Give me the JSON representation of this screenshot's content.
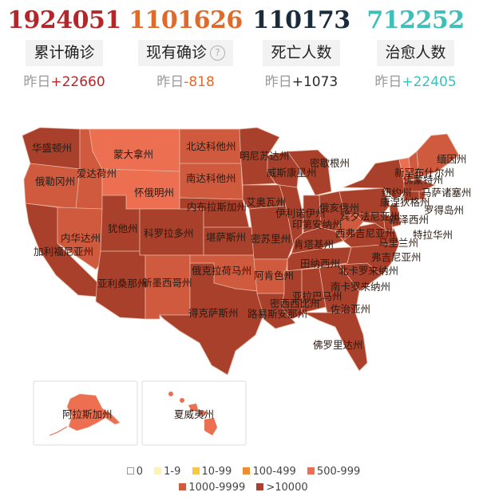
{
  "stats": [
    {
      "value": "1924051",
      "label": "累计确诊",
      "delta_prefix": "昨日",
      "delta": "+22660",
      "color": "#b3262a",
      "delta_color": "#b3262a",
      "help": false
    },
    {
      "value": "1101626",
      "label": "现有确诊",
      "delta_prefix": "昨日",
      "delta": "-818",
      "color": "#e06a2a",
      "delta_color": "#e06a2a",
      "help": true
    },
    {
      "value": "110173",
      "label": "死亡人数",
      "delta_prefix": "昨日",
      "delta": "+1073",
      "color": "#1a2b3c",
      "delta_color": "#2a2a2a",
      "help": false
    },
    {
      "value": "712252",
      "label": "治愈人数",
      "delta_prefix": "昨日",
      "delta": "+22405",
      "color": "#3fbfb9",
      "delta_color": "#3fbfb9",
      "help": false
    }
  ],
  "colors": {
    "c1000_9999": "#cf5a3e",
    "c10000": "#a8402b",
    "c500_999": "#ec6f52",
    "border": "#e8b3a0"
  },
  "states": [
    {
      "name": "华盛顿州",
      "level": ">10000"
    },
    {
      "name": "俄勒冈州",
      "level": "1000-9999"
    },
    {
      "name": "加利福尼亚州",
      "level": ">10000"
    },
    {
      "name": "爱达荷州",
      "level": "1000-9999"
    },
    {
      "name": "内华达州",
      "level": "1000-9999"
    },
    {
      "name": "蒙大拿州",
      "level": "500-999"
    },
    {
      "name": "怀俄明州",
      "level": "500-999"
    },
    {
      "name": "犹他州",
      "level": ">10000"
    },
    {
      "name": "亚利桑那州",
      "level": ">10000"
    },
    {
      "name": "科罗拉多州",
      "level": ">10000"
    },
    {
      "name": "新墨西哥州",
      "level": "1000-9999"
    },
    {
      "name": "北达科他州",
      "level": "1000-9999"
    },
    {
      "name": "南达科他州",
      "level": "1000-9999"
    },
    {
      "name": "内布拉斯加州",
      "level": ">10000"
    },
    {
      "name": "堪萨斯州",
      "level": ">10000"
    },
    {
      "name": "俄克拉荷马州",
      "level": "1000-9999"
    },
    {
      "name": "得克萨斯州",
      "level": ">10000"
    },
    {
      "name": "明尼苏达州",
      "level": ">10000"
    },
    {
      "name": "艾奥瓦州",
      "level": ">10000"
    },
    {
      "name": "密苏里州",
      "level": ">10000"
    },
    {
      "name": "阿肯色州",
      "level": "1000-9999"
    },
    {
      "name": "路易斯安那州",
      "level": ">10000"
    },
    {
      "name": "威斯康星州",
      "level": ">10000"
    },
    {
      "name": "伊利诺伊州",
      "level": ">10000"
    },
    {
      "name": "密歇根州",
      "level": ">10000"
    },
    {
      "name": "印第安纳州",
      "level": ">10000"
    },
    {
      "name": "俄亥俄州",
      "level": ">10000"
    },
    {
      "name": "肯塔基州",
      "level": ">10000"
    },
    {
      "name": "田纳西州",
      "level": ">10000"
    },
    {
      "name": "密西西比州",
      "level": ">10000"
    },
    {
      "name": "亚拉巴马州",
      "level": ">10000"
    },
    {
      "name": "佐治亚州",
      "level": ">10000"
    },
    {
      "name": "佛罗里达州",
      "level": ">10000"
    },
    {
      "name": "南卡罗来纳州",
      "level": ">10000"
    },
    {
      "name": "北卡罗来纳州",
      "level": ">10000"
    },
    {
      "name": "弗吉尼亚州",
      "level": ">10000"
    },
    {
      "name": "西弗吉尼亚州",
      "level": "1000-9999"
    },
    {
      "name": "宾夕法尼亚州",
      "level": ">10000"
    },
    {
      "name": "纽约州",
      "level": ">10000"
    },
    {
      "name": "佛蒙特州",
      "level": "500-999"
    },
    {
      "name": "新罕布什尔州",
      "level": "1000-9999"
    },
    {
      "name": "缅因州",
      "level": "1000-9999"
    },
    {
      "name": "马萨诸塞州",
      "level": ">10000"
    },
    {
      "name": "罗得岛州",
      "level": ">10000"
    },
    {
      "name": "康涅狄格州",
      "level": ">10000"
    },
    {
      "name": "新泽西州",
      "level": ">10000"
    },
    {
      "name": "特拉华州",
      "level": ">10000"
    },
    {
      "name": "马里兰州",
      "level": ">10000"
    },
    {
      "name": "阿拉斯加州",
      "level": "500-999"
    },
    {
      "name": "夏威夷州",
      "level": "500-999"
    }
  ],
  "legend": {
    "row1": [
      {
        "label": "0",
        "color": "#ffffff"
      },
      {
        "label": "1-9",
        "color": "#fff1b8"
      },
      {
        "label": "10-99",
        "color": "#f7c64a"
      },
      {
        "label": "100-499",
        "color": "#ef8b33"
      },
      {
        "label": "500-999",
        "color": "#ec6f52"
      }
    ],
    "row2": [
      {
        "label": "1000-9999",
        "color": "#cf5a3e"
      },
      {
        "label": ">10000",
        "color": "#a8402b"
      }
    ]
  }
}
